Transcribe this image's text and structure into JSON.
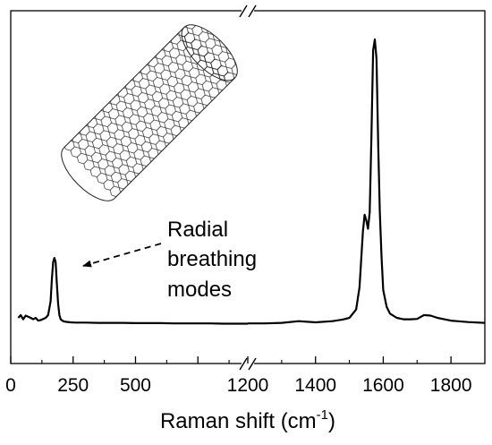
{
  "chart_data": {
    "type": "line",
    "title": "",
    "xlabel": "Raman shift (cm",
    "xlabel_sup": "-1",
    "xlabel_close": ")",
    "ylabel": "",
    "axis_break": true,
    "segments": [
      {
        "xlim": [
          0,
          950
        ],
        "ticks": [
          0,
          250,
          500,
          750
        ]
      },
      {
        "xlim": [
          1200,
          1900
        ],
        "ticks": [
          1200,
          1400,
          1600,
          1800
        ]
      }
    ],
    "tick_labels": [
      "0",
      "250",
      "500",
      "1200",
      "1400",
      "1600",
      "1800"
    ],
    "series": [
      {
        "x": [
          30,
          40,
          50,
          60,
          70,
          80,
          90,
          100,
          110,
          120,
          130,
          140,
          150,
          160,
          165,
          170,
          175,
          180,
          185,
          190,
          195,
          200,
          210,
          220,
          240,
          260,
          300,
          350,
          400,
          450,
          500,
          550,
          600,
          650,
          700,
          750,
          800,
          850,
          900,
          950
        ],
        "y": [
          0.0,
          0.01,
          -0.005,
          0.008,
          0.004,
          0.0,
          -0.005,
          0.0,
          -0.01,
          -0.008,
          -0.004,
          0.0,
          0.01,
          0.06,
          0.14,
          0.2,
          0.215,
          0.2,
          0.12,
          0.05,
          0.01,
          -0.005,
          -0.012,
          -0.014,
          -0.016,
          -0.017,
          -0.017,
          -0.018,
          -0.018,
          -0.018,
          -0.019,
          -0.019,
          -0.019,
          -0.02,
          -0.02,
          -0.02,
          -0.02,
          -0.021,
          -0.021,
          -0.021
        ]
      },
      {
        "x": [
          1200,
          1250,
          1300,
          1350,
          1400,
          1450,
          1480,
          1500,
          1520,
          1530,
          1540,
          1545,
          1550,
          1555,
          1560,
          1565,
          1570,
          1575,
          1580,
          1585,
          1590,
          1595,
          1600,
          1610,
          1620,
          1640,
          1660,
          1680,
          1700,
          1720,
          1740,
          1760,
          1780,
          1800,
          1850,
          1900
        ],
        "y": [
          -0.02,
          -0.02,
          -0.018,
          -0.012,
          -0.016,
          -0.012,
          -0.006,
          0.0,
          0.03,
          0.11,
          0.31,
          0.37,
          0.35,
          0.32,
          0.38,
          0.65,
          0.96,
          1.0,
          0.93,
          0.62,
          0.38,
          0.22,
          0.1,
          0.04,
          0.015,
          0.0,
          -0.005,
          -0.005,
          -0.004,
          0.01,
          0.008,
          0.0,
          -0.005,
          -0.01,
          -0.015,
          -0.018
        ]
      }
    ],
    "annotation": {
      "lines": [
        "Radial",
        "breathing",
        "modes"
      ],
      "target": {
        "x": 175,
        "y": 0.215
      }
    },
    "inset": "carbon-nanotube-illustration",
    "grid": false,
    "legend": "none"
  }
}
